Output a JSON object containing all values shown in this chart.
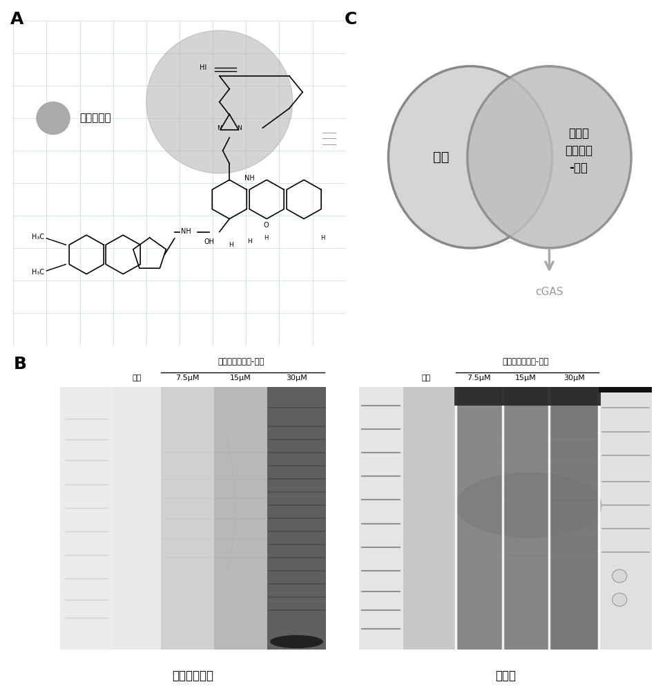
{
  "panel_A_label": "A",
  "panel_B_label": "B",
  "panel_C_label": "C",
  "probe_label": "光交联探针",
  "venn_left_label": "对照",
  "venn_right_label": "马来酸\n茚达特罗\n-探针",
  "venn_arrow_label": "cGAS",
  "gel_left_title": "马来酸茚达特罗-探针",
  "gel_right_title": "马来酸茚达特罗-探针",
  "gel_left_ctrl": "对照",
  "gel_right_ctrl": "对照",
  "gel_conc": [
    "7.5μM",
    "15μM",
    "30μM"
  ],
  "gel_left_caption": "潜在结合蛋白",
  "gel_right_caption": "全蛋白",
  "bg_color": "#ffffff",
  "gray_circle_color": "#aaaaaa",
  "venn_fill_left": "#d0d0d0",
  "venn_fill_right": "#c0c0c0",
  "venn_edge_color": "#888888",
  "arrow_color": "#aaaaaa"
}
